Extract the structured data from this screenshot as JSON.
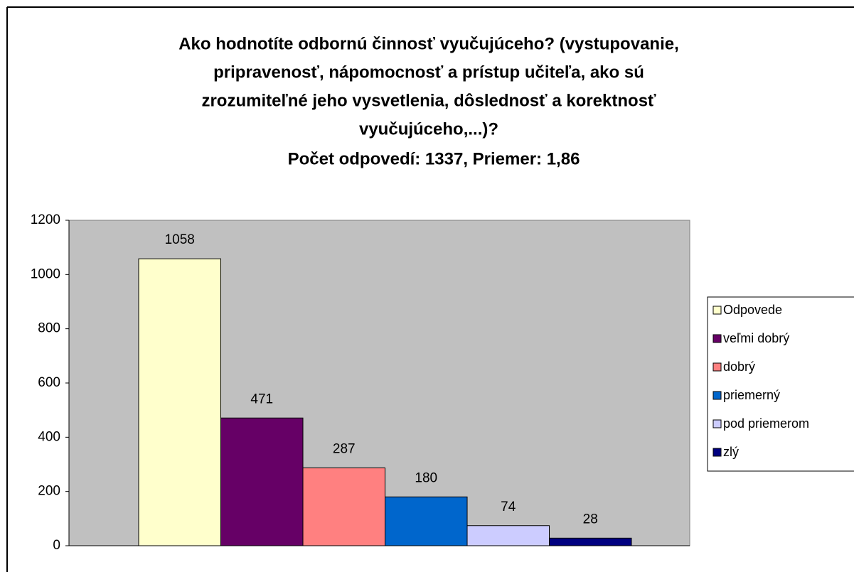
{
  "chart_data": {
    "type": "bar",
    "title": [
      "Ako hodnotíte odbornú činnosť vyučujúceho? (vystupovanie,",
      "pripravenosť, nápomocnosť a prístup učiteľa, ako sú",
      "zrozumiteľné jeho vysvetlenia, dôslednosť a korektnosť",
      "vyučujúceho,...)?"
    ],
    "subtitle": "Počet odpovedí: 1337, Priemer: 1,86",
    "categories": [
      null
    ],
    "series": [
      {
        "name": "Odpovede",
        "color": "#ffffcc",
        "values": [
          1058
        ]
      },
      {
        "name": "veľmi dobrý",
        "color": "#660066",
        "values": [
          471
        ]
      },
      {
        "name": "dobrý",
        "color": "#ff8080",
        "values": [
          287
        ]
      },
      {
        "name": "priemerný",
        "color": "#0066cc",
        "values": [
          180
        ]
      },
      {
        "name": "pod priemerom",
        "color": "#ccccff",
        "values": [
          74
        ]
      },
      {
        "name": "zlý",
        "color": "#000080",
        "values": [
          28
        ]
      }
    ],
    "ylim": [
      0,
      1200
    ],
    "yticks": [
      0,
      200,
      400,
      600,
      800,
      1000,
      1200
    ],
    "legend": "right"
  }
}
